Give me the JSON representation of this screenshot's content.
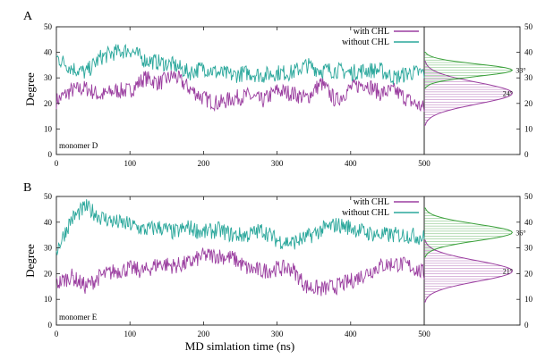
{
  "figure": {
    "xlabel": "MD simlation time (ns)",
    "ylabel": "Degree"
  },
  "colors": {
    "with_chl": "#9b3fa0",
    "without_chl": "#2aa79b",
    "hist_with": "#9b3fa0",
    "hist_without": "#3aa03a"
  },
  "chart_data": [
    {
      "type": "line",
      "panel_label": "A",
      "annotation": "monomer D",
      "xlabel": "",
      "ylabel": "Degree",
      "xlim": [
        0,
        500
      ],
      "ylim": [
        0,
        50
      ],
      "xticks": [
        "0",
        "100",
        "200",
        "300",
        "400",
        "500"
      ],
      "yticks": [
        "0",
        "10",
        "20",
        "30",
        "40",
        "50"
      ],
      "right_yticks": [
        "0",
        "10",
        "20",
        "30",
        "40",
        "50"
      ],
      "legend_position": "top-right",
      "series": [
        {
          "name": "with CHL",
          "color": "#9b3fa0",
          "x": [
            0,
            20,
            40,
            60,
            80,
            100,
            120,
            140,
            160,
            180,
            200,
            220,
            240,
            260,
            280,
            300,
            320,
            340,
            360,
            380,
            400,
            420,
            440,
            460,
            480,
            500
          ],
          "values": [
            21,
            25,
            26,
            23,
            25,
            25,
            30,
            28,
            31,
            26,
            22,
            20,
            22,
            23,
            21,
            25,
            24,
            22,
            28,
            21,
            26,
            28,
            24,
            25,
            21,
            18
          ]
        },
        {
          "name": "without CHL",
          "color": "#2aa79b",
          "x": [
            0,
            20,
            40,
            60,
            80,
            100,
            120,
            140,
            160,
            180,
            200,
            220,
            240,
            260,
            280,
            300,
            320,
            340,
            360,
            380,
            400,
            420,
            440,
            460,
            480,
            500
          ],
          "values": [
            38,
            34,
            32,
            38,
            40,
            41,
            37,
            36,
            35,
            32,
            34,
            32,
            31,
            32,
            31,
            32,
            32,
            35,
            33,
            33,
            32,
            33,
            33,
            30,
            32,
            32
          ]
        }
      ],
      "histogram": {
        "ylim": [
          0,
          50
        ],
        "peak_labels": [
          {
            "text": "33°",
            "series": "without CHL",
            "angle": 33
          },
          {
            "text": "24°",
            "series": "with CHL",
            "angle": 24
          }
        ],
        "with_chl": {
          "mean": 24,
          "sd": 4.2
        },
        "without_chl": {
          "mean": 33,
          "sd": 2.4
        }
      }
    },
    {
      "type": "line",
      "panel_label": "B",
      "annotation": "monomer E",
      "xlabel": "MD simlation time (ns)",
      "ylabel": "Degree",
      "xlim": [
        0,
        500
      ],
      "ylim": [
        0,
        50
      ],
      "xticks": [
        "0",
        "100",
        "200",
        "300",
        "400",
        "500"
      ],
      "yticks": [
        "0",
        "10",
        "20",
        "30",
        "40",
        "50"
      ],
      "right_yticks": [
        "0",
        "10",
        "20",
        "30",
        "40",
        "50"
      ],
      "legend_position": "top-right",
      "series": [
        {
          "name": "with CHL",
          "color": "#9b3fa0",
          "x": [
            0,
            20,
            40,
            60,
            80,
            100,
            120,
            140,
            160,
            180,
            200,
            220,
            240,
            260,
            280,
            300,
            320,
            340,
            360,
            380,
            400,
            420,
            440,
            460,
            480,
            500
          ],
          "values": [
            16,
            19,
            15,
            19,
            21,
            22,
            21,
            24,
            23,
            24,
            27,
            27,
            26,
            22,
            21,
            22,
            22,
            15,
            14,
            15,
            17,
            20,
            23,
            24,
            23,
            20
          ]
        },
        {
          "name": "without CHL",
          "color": "#2aa79b",
          "x": [
            0,
            20,
            40,
            60,
            80,
            100,
            120,
            140,
            160,
            180,
            200,
            220,
            240,
            260,
            280,
            300,
            320,
            340,
            360,
            380,
            400,
            420,
            440,
            460,
            480,
            500
          ],
          "values": [
            29,
            41,
            46,
            42,
            40,
            39,
            37,
            38,
            36,
            38,
            36,
            37,
            35,
            35,
            37,
            33,
            32,
            34,
            37,
            39,
            38,
            36,
            35,
            35,
            35,
            34
          ]
        }
      ],
      "histogram": {
        "ylim": [
          0,
          50
        ],
        "peak_labels": [
          {
            "text": "36°",
            "series": "without CHL",
            "angle": 36
          },
          {
            "text": "21°",
            "series": "with CHL",
            "angle": 21
          }
        ],
        "with_chl": {
          "mean": 21,
          "sd": 4.0
        },
        "without_chl": {
          "mean": 36,
          "sd": 3.2
        }
      }
    }
  ]
}
